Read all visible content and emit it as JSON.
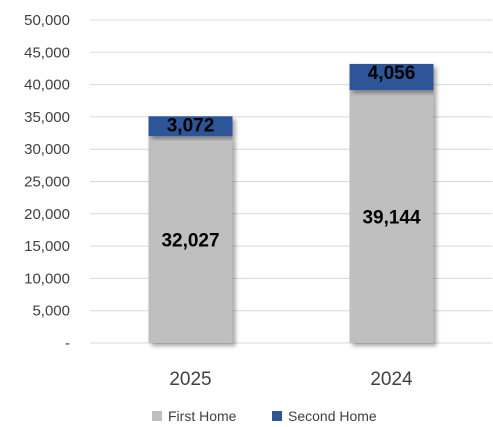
{
  "chart_data": {
    "type": "bar",
    "stacked": true,
    "categories": [
      "2025",
      "2024"
    ],
    "series": [
      {
        "name": "First Home",
        "values": [
          32027,
          39144
        ],
        "color": "#bfbfbf",
        "labels": [
          "32,027",
          "39,144"
        ]
      },
      {
        "name": "Second Home",
        "values": [
          3072,
          4056
        ],
        "color": "#2f5597",
        "labels": [
          "3,072",
          "4,056"
        ]
      }
    ],
    "ylim": [
      0,
      50000
    ],
    "yticks": [
      0,
      5000,
      10000,
      15000,
      20000,
      25000,
      30000,
      35000,
      40000,
      45000,
      50000
    ],
    "ytick_labels": [
      "-",
      "5,000",
      "10,000",
      "15,000",
      "20,000",
      "25,000",
      "30,000",
      "35,000",
      "40,000",
      "45,000",
      "50,000"
    ],
    "grid": true,
    "legend_position": "bottom",
    "title": "",
    "xlabel": "",
    "ylabel": ""
  }
}
